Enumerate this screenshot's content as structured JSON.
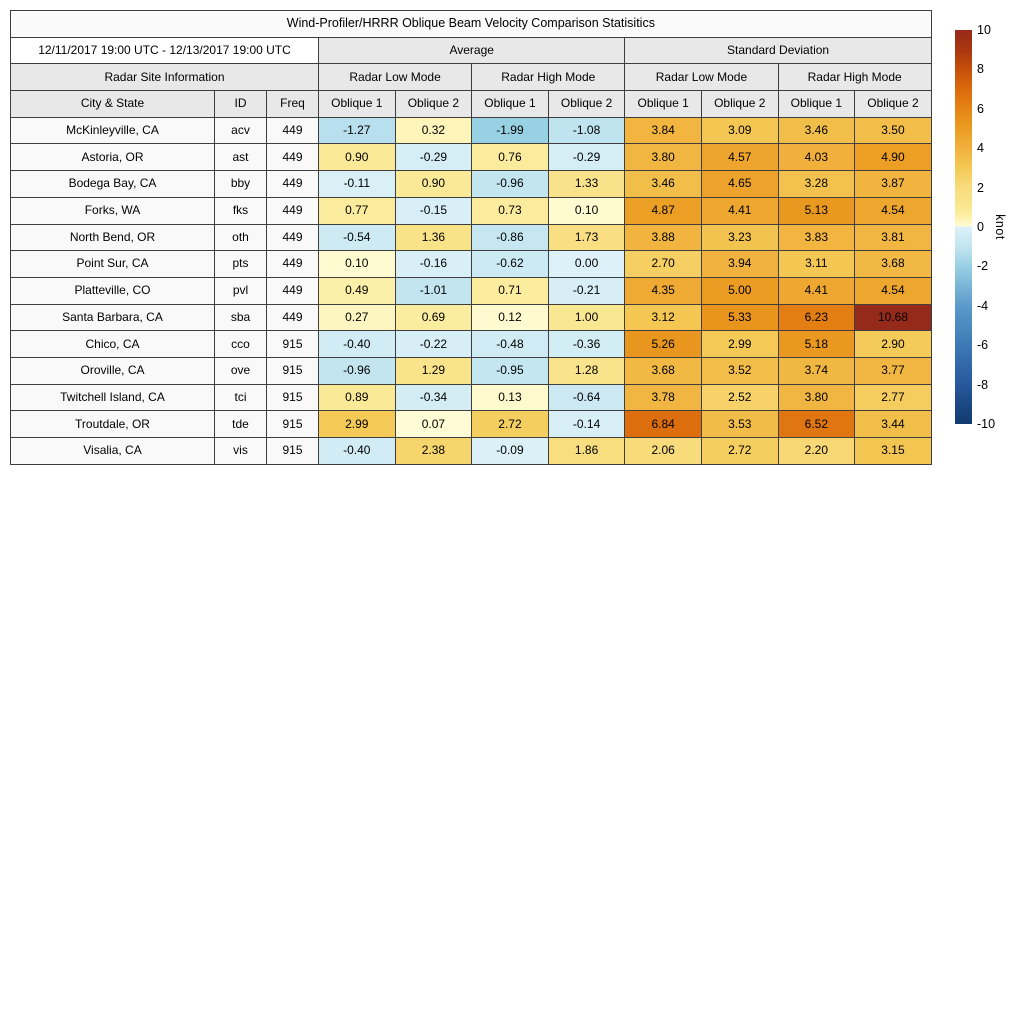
{
  "title": "Wind-Profiler/HRRR Oblique Beam Velocity Comparison Statisitics",
  "date_range": "12/11/2017 19:00 UTC - 12/13/2017 19:00 UTC",
  "headers": {
    "average": "Average",
    "std_dev": "Standard Deviation",
    "site_info": "Radar Site Information",
    "low_mode": "Radar Low Mode",
    "high_mode": "Radar High Mode",
    "city_state": "City & State",
    "id": "ID",
    "freq": "Freq",
    "oblique1": "Oblique 1",
    "oblique2": "Oblique 2"
  },
  "colorbar": {
    "label": "knot",
    "min": -10,
    "max": 10,
    "ticks": [
      10,
      8,
      6,
      4,
      2,
      0,
      -2,
      -4,
      -6,
      -8,
      -10
    ],
    "stops": [
      [
        -10,
        "#113a6d"
      ],
      [
        -8,
        "#27589d"
      ],
      [
        -6,
        "#3d7ab5"
      ],
      [
        -4,
        "#5b9aca"
      ],
      [
        -2,
        "#98d0e4"
      ],
      [
        -1,
        "#c2e5f0"
      ],
      [
        0,
        "#ddf1f8"
      ],
      [
        0.05,
        "#fffcd6"
      ],
      [
        0.5,
        "#fcf0a8"
      ],
      [
        1,
        "#fae791"
      ],
      [
        2,
        "#f8dc7c"
      ],
      [
        3,
        "#f4c955"
      ],
      [
        4,
        "#f0b13c"
      ],
      [
        5,
        "#eb9c22"
      ],
      [
        6,
        "#e48413"
      ],
      [
        7,
        "#dc6a0d"
      ],
      [
        8,
        "#c54f09"
      ],
      [
        9,
        "#a9370f"
      ],
      [
        10,
        "#962a1a"
      ]
    ]
  },
  "chart_data": {
    "type": "heatmap",
    "title": "Wind-Profiler/HRRR Oblique Beam Velocity Comparison Statisitics",
    "subtitle": "12/11/2017 19:00 UTC - 12/13/2017 19:00 UTC",
    "value_unit": "knot",
    "value_range": [
      -10,
      10
    ],
    "column_groups": [
      "Average / Radar Low Mode",
      "Average / Radar High Mode",
      "Standard Deviation / Radar Low Mode",
      "Standard Deviation / Radar High Mode"
    ],
    "columns": [
      "Avg Low Oblique 1",
      "Avg Low Oblique 2",
      "Avg High Oblique 1",
      "Avg High Oblique 2",
      "Std Low Oblique 1",
      "Std Low Oblique 2",
      "Std High Oblique 1",
      "Std High Oblique 2"
    ],
    "rows": [
      {
        "city": "McKinleyville, CA",
        "id": "acv",
        "freq": "449",
        "values": [
          -1.27,
          0.32,
          -1.99,
          -1.08,
          3.84,
          3.09,
          3.46,
          3.5
        ]
      },
      {
        "city": "Astoria, OR",
        "id": "ast",
        "freq": "449",
        "values": [
          0.9,
          -0.29,
          0.76,
          -0.29,
          3.8,
          4.57,
          4.03,
          4.9
        ]
      },
      {
        "city": "Bodega Bay, CA",
        "id": "bby",
        "freq": "449",
        "values": [
          -0.11,
          0.9,
          -0.96,
          1.33,
          3.46,
          4.65,
          3.28,
          3.87
        ]
      },
      {
        "city": "Forks, WA",
        "id": "fks",
        "freq": "449",
        "values": [
          0.77,
          -0.15,
          0.73,
          0.1,
          4.87,
          4.41,
          5.13,
          4.54
        ]
      },
      {
        "city": "North Bend, OR",
        "id": "oth",
        "freq": "449",
        "values": [
          -0.54,
          1.36,
          -0.86,
          1.73,
          3.88,
          3.23,
          3.83,
          3.81
        ]
      },
      {
        "city": "Point Sur, CA",
        "id": "pts",
        "freq": "449",
        "values": [
          0.1,
          -0.16,
          -0.62,
          0.0,
          2.7,
          3.94,
          3.11,
          3.68
        ]
      },
      {
        "city": "Platteville, CO",
        "id": "pvl",
        "freq": "449",
        "values": [
          0.49,
          -1.01,
          0.71,
          -0.21,
          4.35,
          5.0,
          4.41,
          4.54
        ]
      },
      {
        "city": "Santa Barbara, CA",
        "id": "sba",
        "freq": "449",
        "values": [
          0.27,
          0.69,
          0.12,
          1.0,
          3.12,
          5.33,
          6.23,
          10.68
        ]
      },
      {
        "city": "Chico, CA",
        "id": "cco",
        "freq": "915",
        "values": [
          -0.4,
          -0.22,
          -0.48,
          -0.36,
          5.26,
          2.99,
          5.18,
          2.9
        ]
      },
      {
        "city": "Oroville, CA",
        "id": "ove",
        "freq": "915",
        "values": [
          -0.96,
          1.29,
          -0.95,
          1.28,
          3.68,
          3.52,
          3.74,
          3.77
        ]
      },
      {
        "city": "Twitchell Island, CA",
        "id": "tci",
        "freq": "915",
        "values": [
          0.89,
          -0.34,
          0.13,
          -0.64,
          3.78,
          2.52,
          3.8,
          2.77
        ]
      },
      {
        "city": "Troutdale, OR",
        "id": "tde",
        "freq": "915",
        "values": [
          2.99,
          0.07,
          2.72,
          -0.14,
          6.84,
          3.53,
          6.52,
          3.44
        ]
      },
      {
        "city": "Visalia, CA",
        "id": "vis",
        "freq": "915",
        "values": [
          -0.4,
          2.38,
          -0.09,
          1.86,
          2.06,
          2.72,
          2.2,
          3.15
        ]
      }
    ]
  }
}
